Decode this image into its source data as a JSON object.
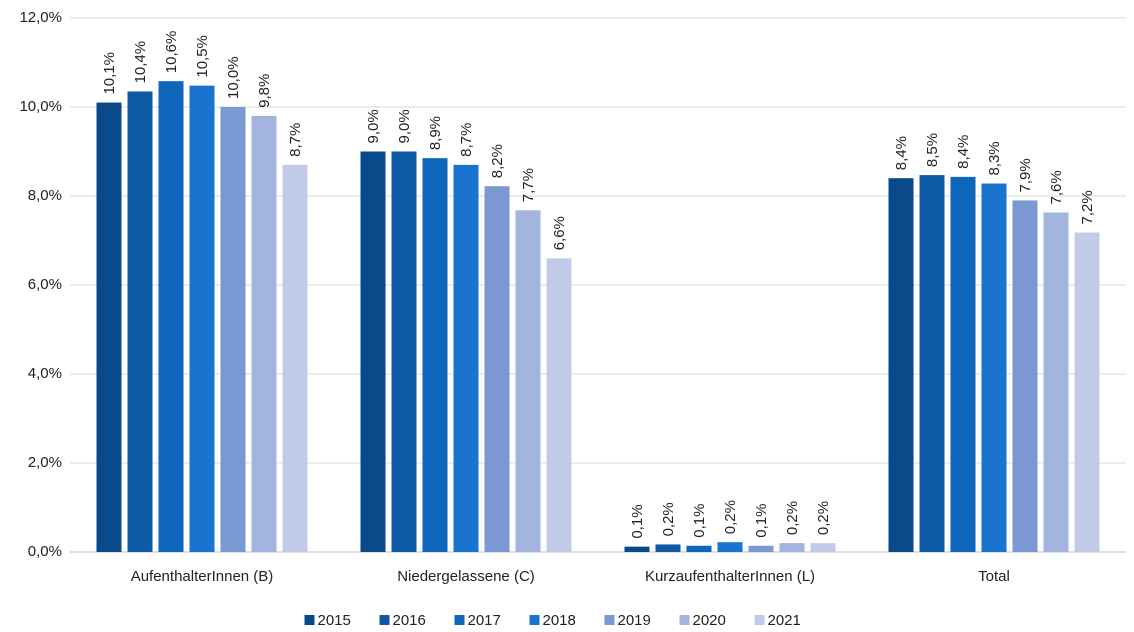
{
  "chart_data": {
    "type": "bar",
    "categories": [
      "AufenthalterInnen (B)",
      "Niedergelassene (C)",
      "KurzaufenthalterInnen (L)",
      "Total"
    ],
    "series": [
      {
        "name": "2015",
        "color": "#0a4a8a",
        "values": [
          10.1,
          9.0,
          0.12,
          8.4
        ],
        "value_labels": [
          "10,1%",
          "9,0%",
          "0,1%",
          "8,4%"
        ]
      },
      {
        "name": "2016",
        "color": "#0c59a5",
        "values": [
          10.35,
          9.0,
          0.17,
          8.47
        ],
        "value_labels": [
          "10,4%",
          "9,0%",
          "0,2%",
          "8,5%"
        ]
      },
      {
        "name": "2017",
        "color": "#0f66bd",
        "values": [
          10.58,
          8.85,
          0.14,
          8.43
        ],
        "value_labels": [
          "10,6%",
          "8,9%",
          "0,1%",
          "8,4%"
        ]
      },
      {
        "name": "2018",
        "color": "#1874cf",
        "values": [
          10.48,
          8.7,
          0.22,
          8.28
        ],
        "value_labels": [
          "10,5%",
          "8,7%",
          "0,2%",
          "8,3%"
        ]
      },
      {
        "name": "2019",
        "color": "#7a98d2",
        "values": [
          10.0,
          8.22,
          0.14,
          7.9
        ],
        "value_labels": [
          "10,0%",
          "8,2%",
          "0,1%",
          "7,9%"
        ]
      },
      {
        "name": "2020",
        "color": "#a3b5de",
        "values": [
          9.8,
          7.68,
          0.2,
          7.63
        ],
        "value_labels": [
          "9,8%",
          "7,7%",
          "0,2%",
          "7,6%"
        ]
      },
      {
        "name": "2021",
        "color": "#c2cce8",
        "values": [
          8.7,
          6.6,
          0.2,
          7.18
        ],
        "value_labels": [
          "8,7%",
          "6,6%",
          "0,2%",
          "7,2%"
        ]
      }
    ],
    "ylim": [
      0,
      12
    ],
    "yticks": [
      {
        "value": 0,
        "label": "0,0%"
      },
      {
        "value": 2,
        "label": "2,0%"
      },
      {
        "value": 4,
        "label": "4,0%"
      },
      {
        "value": 6,
        "label": "6,0%"
      },
      {
        "value": 8,
        "label": "8,0%"
      },
      {
        "value": 10,
        "label": "10,0%"
      },
      {
        "value": 12,
        "label": "12,0%"
      }
    ],
    "grid": true,
    "legend": "bottom"
  }
}
